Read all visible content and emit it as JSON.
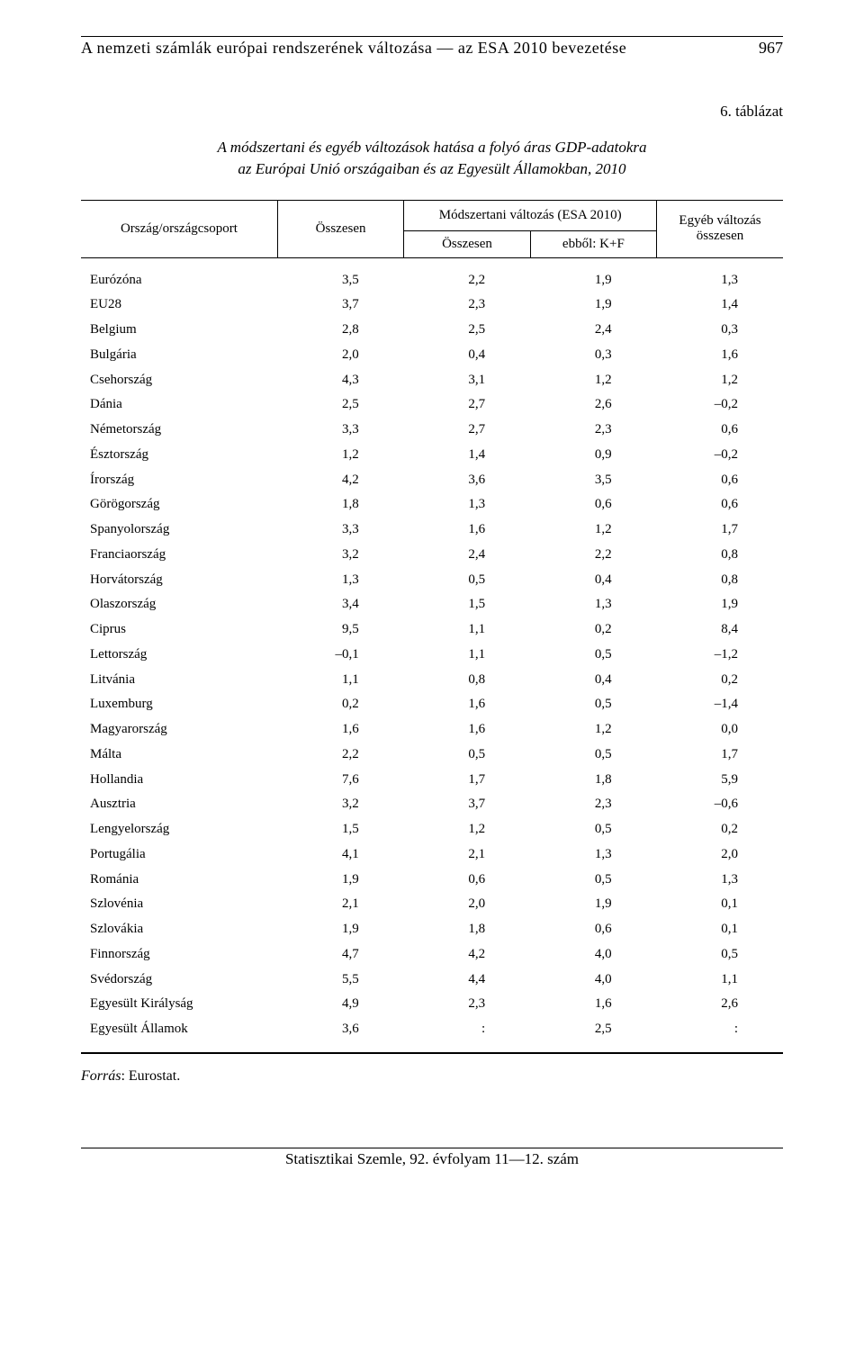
{
  "header": {
    "running_head": "A nemzeti számlák európai rendszerének változása — az ESA 2010 bevezetése",
    "page_number": "967"
  },
  "table": {
    "label": "6. táblázat",
    "title_line1": "A módszertani és egyéb változások hatása a folyó áras GDP-adatokra",
    "title_line2": "az Európai Unió országaiban és az Egyesült Államokban, 2010",
    "head": {
      "col0": "Ország/országcsoport",
      "col1": "Összesen",
      "col_group": "Módszertani változás (ESA 2010)",
      "col2": "Összesen",
      "col3": "ebből: K+F",
      "col4_line1": "Egyéb változás",
      "col4_line2": "összesen"
    },
    "columns_count": 5,
    "rows": [
      {
        "name": "Eurózóna",
        "v": [
          "3,5",
          "2,2",
          "1,9",
          "1,3"
        ]
      },
      {
        "name": "EU28",
        "v": [
          "3,7",
          "2,3",
          "1,9",
          "1,4"
        ]
      },
      {
        "name": "Belgium",
        "v": [
          "2,8",
          "2,5",
          "2,4",
          "0,3"
        ]
      },
      {
        "name": "Bulgária",
        "v": [
          "2,0",
          "0,4",
          "0,3",
          "1,6"
        ]
      },
      {
        "name": "Csehország",
        "v": [
          "4,3",
          "3,1",
          "1,2",
          "1,2"
        ]
      },
      {
        "name": "Dánia",
        "v": [
          "2,5",
          "2,7",
          "2,6",
          "–0,2"
        ]
      },
      {
        "name": "Németország",
        "v": [
          "3,3",
          "2,7",
          "2,3",
          "0,6"
        ]
      },
      {
        "name": "Észtország",
        "v": [
          "1,2",
          "1,4",
          "0,9",
          "–0,2"
        ]
      },
      {
        "name": "Írország",
        "v": [
          "4,2",
          "3,6",
          "3,5",
          "0,6"
        ]
      },
      {
        "name": "Görögország",
        "v": [
          "1,8",
          "1,3",
          "0,6",
          "0,6"
        ]
      },
      {
        "name": "Spanyolország",
        "v": [
          "3,3",
          "1,6",
          "1,2",
          "1,7"
        ]
      },
      {
        "name": "Franciaország",
        "v": [
          "3,2",
          "2,4",
          "2,2",
          "0,8"
        ]
      },
      {
        "name": "Horvátország",
        "v": [
          "1,3",
          "0,5",
          "0,4",
          "0,8"
        ]
      },
      {
        "name": "Olaszország",
        "v": [
          "3,4",
          "1,5",
          "1,3",
          "1,9"
        ]
      },
      {
        "name": "Ciprus",
        "v": [
          "9,5",
          "1,1",
          "0,2",
          "8,4"
        ]
      },
      {
        "name": "Lettország",
        "v": [
          "–0,1",
          "1,1",
          "0,5",
          "–1,2"
        ]
      },
      {
        "name": "Litvánia",
        "v": [
          "1,1",
          "0,8",
          "0,4",
          "0,2"
        ]
      },
      {
        "name": "Luxemburg",
        "v": [
          "0,2",
          "1,6",
          "0,5",
          "–1,4"
        ]
      },
      {
        "name": "Magyarország",
        "v": [
          "1,6",
          "1,6",
          "1,2",
          "0,0"
        ]
      },
      {
        "name": "Málta",
        "v": [
          "2,2",
          "0,5",
          "0,5",
          "1,7"
        ]
      },
      {
        "name": "Hollandia",
        "v": [
          "7,6",
          "1,7",
          "1,8",
          "5,9"
        ]
      },
      {
        "name": "Ausztria",
        "v": [
          "3,2",
          "3,7",
          "2,3",
          "–0,6"
        ]
      },
      {
        "name": "Lengyelország",
        "v": [
          "1,5",
          "1,2",
          "0,5",
          "0,2"
        ]
      },
      {
        "name": "Portugália",
        "v": [
          "4,1",
          "2,1",
          "1,3",
          "2,0"
        ]
      },
      {
        "name": "Románia",
        "v": [
          "1,9",
          "0,6",
          "0,5",
          "1,3"
        ]
      },
      {
        "name": "Szlovénia",
        "v": [
          "2,1",
          "2,0",
          "1,9",
          "0,1"
        ]
      },
      {
        "name": "Szlovákia",
        "v": [
          "1,9",
          "1,8",
          "0,6",
          "0,1"
        ]
      },
      {
        "name": "Finnország",
        "v": [
          "4,7",
          "4,2",
          "4,0",
          "0,5"
        ]
      },
      {
        "name": "Svédország",
        "v": [
          "5,5",
          "4,4",
          "4,0",
          "1,1"
        ]
      },
      {
        "name": "Egyesült Királyság",
        "v": [
          "4,9",
          "2,3",
          "1,6",
          "2,6"
        ]
      },
      {
        "name": "Egyesült Államok",
        "v": [
          "3,6",
          ":",
          "2,5",
          ":"
        ]
      }
    ]
  },
  "source": {
    "label": "Forrás",
    "text": ": Eurostat."
  },
  "footer": {
    "text": "Statisztikai Szemle, 92. évfolyam 11—12. szám"
  }
}
